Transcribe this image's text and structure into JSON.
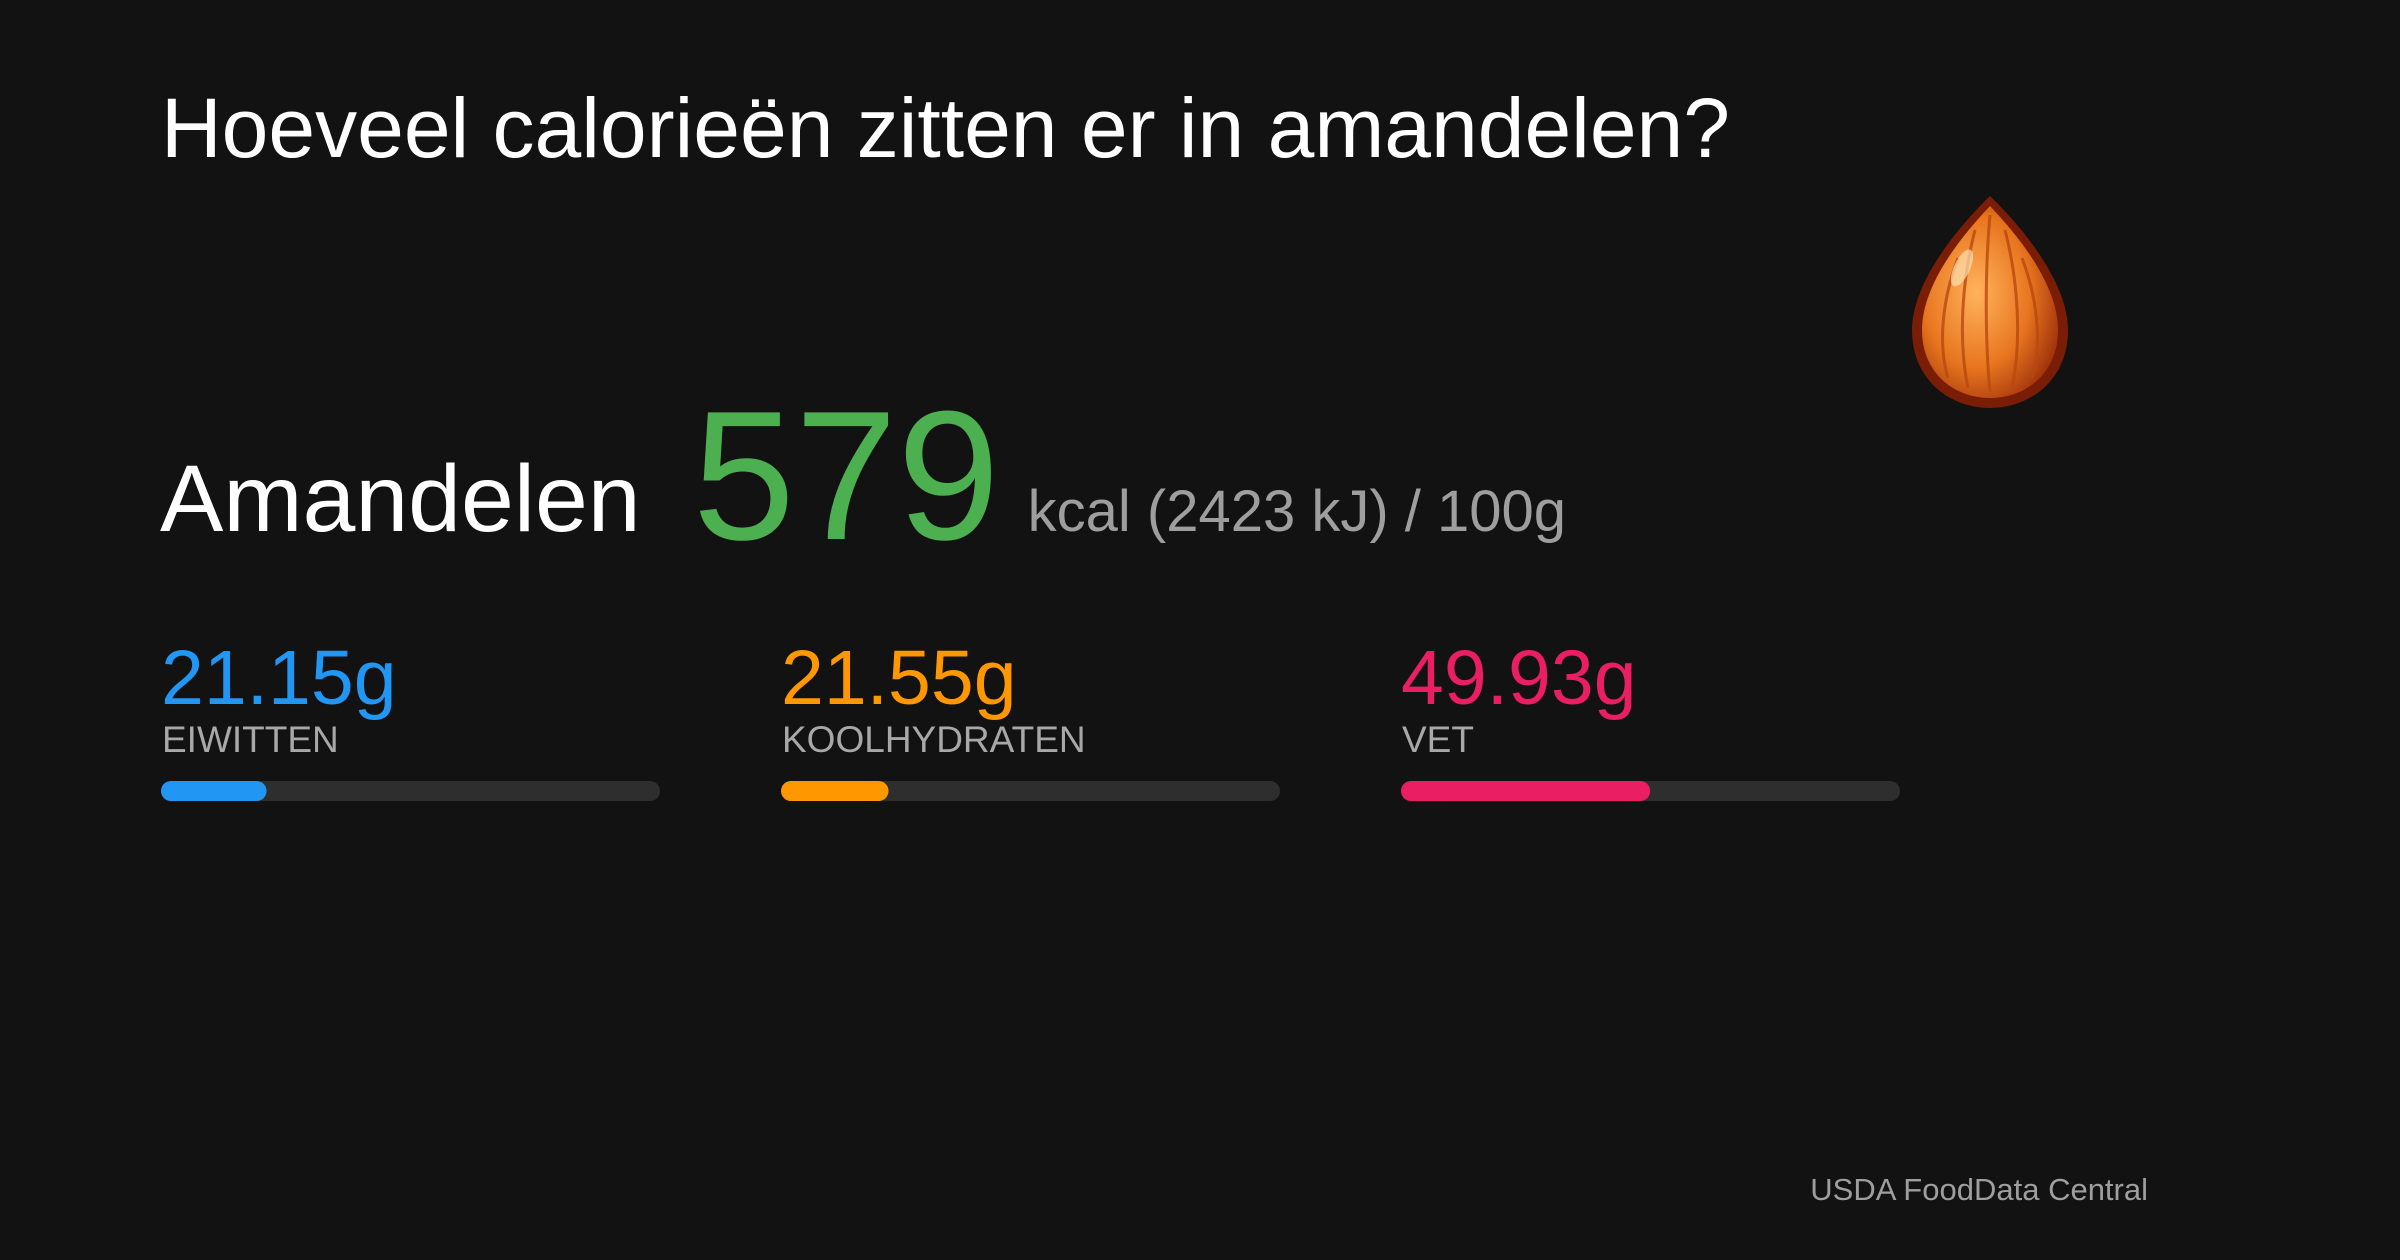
{
  "header": {
    "title": "Hoeveel calorieën zitten er in amandelen?"
  },
  "food": {
    "name": "Amandelen",
    "kcal": 579,
    "unit_text": "kcal (2423 kJ) / 100g"
  },
  "macros": {
    "xlim": [
      0,
      100
    ],
    "items": [
      {
        "value": 21.15,
        "value_label": "21.15g",
        "label": "EIWITTEN",
        "color": "#2196f3"
      },
      {
        "value": 21.55,
        "value_label": "21.55g",
        "label": "KOOLHYDRATEN",
        "color": "#ff9800"
      },
      {
        "value": 49.93,
        "value_label": "49.93g",
        "label": "VET",
        "color": "#e91e63"
      }
    ]
  },
  "footer": {
    "source": "USDA FoodData Central"
  }
}
